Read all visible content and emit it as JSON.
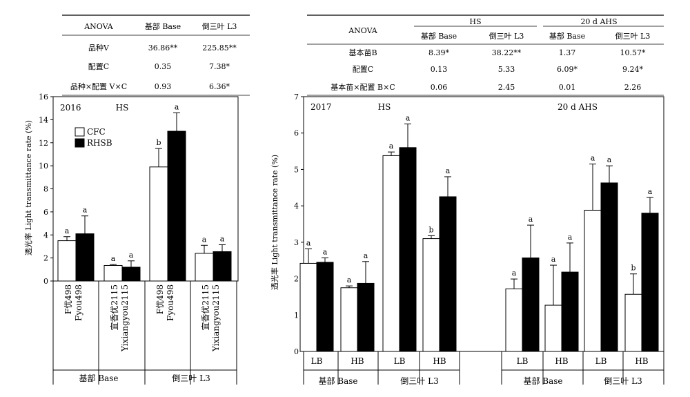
{
  "chart_data": [
    {
      "type": "table",
      "header": [
        "ANOVA",
        "基部 Base",
        "倒三叶 L3"
      ],
      "rows": [
        [
          "品种V",
          "36.86**",
          "225.85**"
        ],
        [
          "配置C",
          "0.35",
          "7.38*"
        ],
        [
          "品种×配置 V×C",
          "0.93",
          "6.36*"
        ]
      ]
    },
    {
      "type": "bar",
      "year_label": "2016",
      "condition_label": "HS",
      "ylabel": "透光率 Light transmittance rate (%)",
      "ylim": [
        0,
        16
      ],
      "yticks": [
        "0",
        "2",
        "4",
        "6",
        "8",
        "10",
        "12",
        "14",
        "16"
      ],
      "legend": {
        "placement": "top-left"
      },
      "series": [
        {
          "name": "CFC",
          "color": "#ffffff",
          "values": [
            3.5,
            1.35,
            9.9,
            2.4
          ],
          "errors": [
            0.35,
            0.08,
            1.6,
            0.7
          ],
          "letters": [
            "a",
            "a",
            "b",
            "a"
          ]
        },
        {
          "name": "RHSB",
          "color": "#000000",
          "values": [
            4.1,
            1.2,
            13.0,
            2.55
          ],
          "errors": [
            1.55,
            0.55,
            1.6,
            0.6
          ],
          "letters": [
            "a",
            "a",
            "a",
            "a"
          ]
        }
      ],
      "categories": [
        {
          "line1": "F优498",
          "line2": "Fyou498"
        },
        {
          "line1": "宜香优2115",
          "line2": "Yixiangyou2115"
        },
        {
          "line1": "F优498",
          "line2": "Fyou498"
        },
        {
          "line1": "宜香优2115",
          "line2": "Yixiangyou2115"
        }
      ],
      "groups": [
        "基部 Base",
        "倒三叶 L3"
      ]
    },
    {
      "type": "table",
      "spanners": [
        "HS",
        "20 d AHS"
      ],
      "header": [
        "ANOVA",
        "基部 Base",
        "倒三叶 L3",
        "基部 Base",
        "倒三叶 L3"
      ],
      "rows": [
        [
          "基本苗B",
          "8.39*",
          "38.22**",
          "1.37",
          "10.57*"
        ],
        [
          "配置C",
          "0.13",
          "5.33",
          "6.09*",
          "9.24*"
        ],
        [
          "基本苗×配置 B×C",
          "0.06",
          "2.45",
          "0.01",
          "2.26"
        ]
      ]
    },
    {
      "type": "bar",
      "year_label": "2017",
      "condition_labels": [
        "HS",
        "20 d AHS"
      ],
      "ylabel": "透光率 Light transmittance rate (%)",
      "ylim": [
        0,
        7
      ],
      "yticks": [
        "0",
        "1",
        "2",
        "3",
        "4",
        "5",
        "6",
        "7"
      ],
      "series": [
        {
          "name": "CFC",
          "color": "#ffffff",
          "values": [
            2.42,
            1.75,
            5.38,
            3.1,
            1.72,
            1.27,
            3.88,
            1.57
          ],
          "errors": [
            0.4,
            0.05,
            0.1,
            0.08,
            0.27,
            1.1,
            1.27,
            0.56
          ],
          "letters": [
            "a",
            "a",
            "a",
            "b",
            "a",
            "a",
            "a",
            "b"
          ]
        },
        {
          "name": "RHSB",
          "color": "#000000",
          "values": [
            2.45,
            1.87,
            5.6,
            4.25,
            2.57,
            2.18,
            4.63,
            3.8
          ],
          "errors": [
            0.12,
            0.6,
            0.65,
            0.55,
            0.9,
            0.8,
            0.47,
            0.43
          ],
          "letters": [
            "a",
            "a",
            "a",
            "a",
            "a",
            "a",
            "a",
            "a"
          ]
        }
      ],
      "categories": [
        "LB",
        "HB",
        "LB",
        "HB",
        "LB",
        "HB",
        "LB",
        "HB"
      ],
      "groups": [
        "基部 Base",
        "倒三叶 L3",
        "基部 Base",
        "倒三叶 L3"
      ]
    }
  ]
}
